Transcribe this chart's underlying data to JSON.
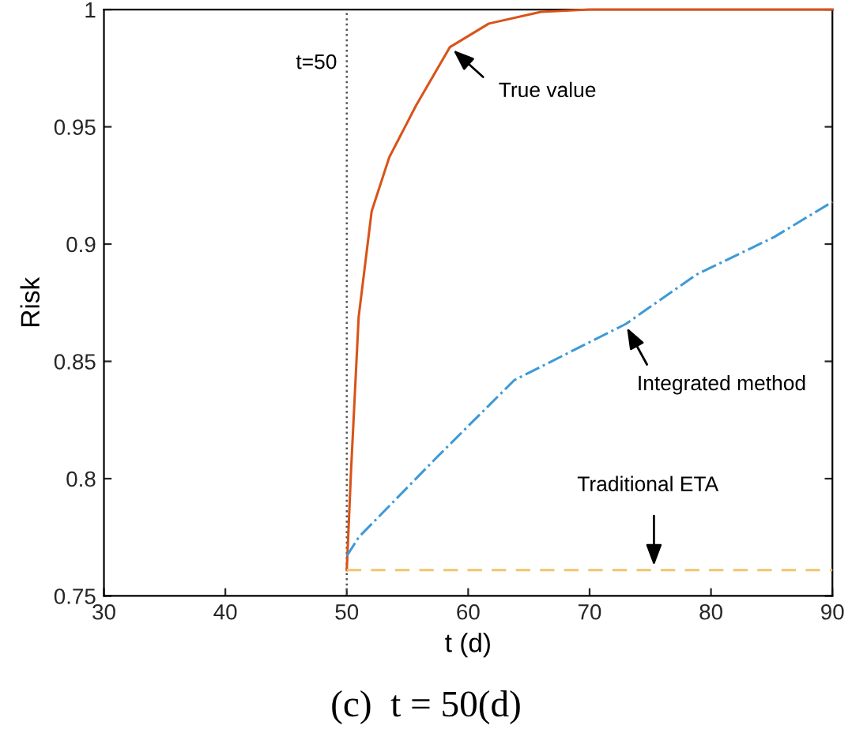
{
  "chart_data": {
    "type": "line",
    "xlabel": "t (d)",
    "ylabel": "Risk",
    "xlim": [
      30,
      90
    ],
    "ylim": [
      0.75,
      1
    ],
    "xticks": [
      30,
      40,
      50,
      60,
      70,
      80,
      90
    ],
    "yticks": [
      0.75,
      0.8,
      0.85,
      0.9,
      0.95,
      1
    ],
    "grid": false,
    "legend": false,
    "series": [
      {
        "color": "#d95319",
        "line_style": "solid",
        "x": [
          50,
          50.34,
          50.98,
          52.05,
          53.5,
          55.7,
          58.5,
          61.7,
          66,
          70,
          80,
          90
        ],
        "values": [
          0.761,
          0.802,
          0.869,
          0.914,
          0.937,
          0.959,
          0.984,
          0.994,
          0.999,
          1,
          1,
          1
        ]
      },
      {
        "color": "#3d9ad8",
        "line_style": "dashdot",
        "x": [
          50,
          50.98,
          57.4,
          63.8,
          73,
          78.8,
          85.2,
          90
        ],
        "values": [
          0.767,
          0.775,
          0.809,
          0.842,
          0.866,
          0.887,
          0.903,
          0.918
        ]
      },
      {
        "color": "#f2c46d",
        "line_style": "dashed",
        "x": [
          50,
          90
        ],
        "values": [
          0.761,
          0.761
        ]
      }
    ],
    "ref_lines": [
      {
        "axis": "x",
        "value": 50,
        "label": "t=50",
        "color": "#555555",
        "line_style": "dotted"
      }
    ],
    "annotations": [
      {
        "text": "True value",
        "x": 58.5,
        "y": 0.984
      },
      {
        "text": "Integrated method",
        "x": 72.9,
        "y": 0.866
      },
      {
        "text": "Traditional ETA",
        "x": 75.3,
        "y": 0.761
      },
      "(c)  t = 50(d)"
    ]
  }
}
